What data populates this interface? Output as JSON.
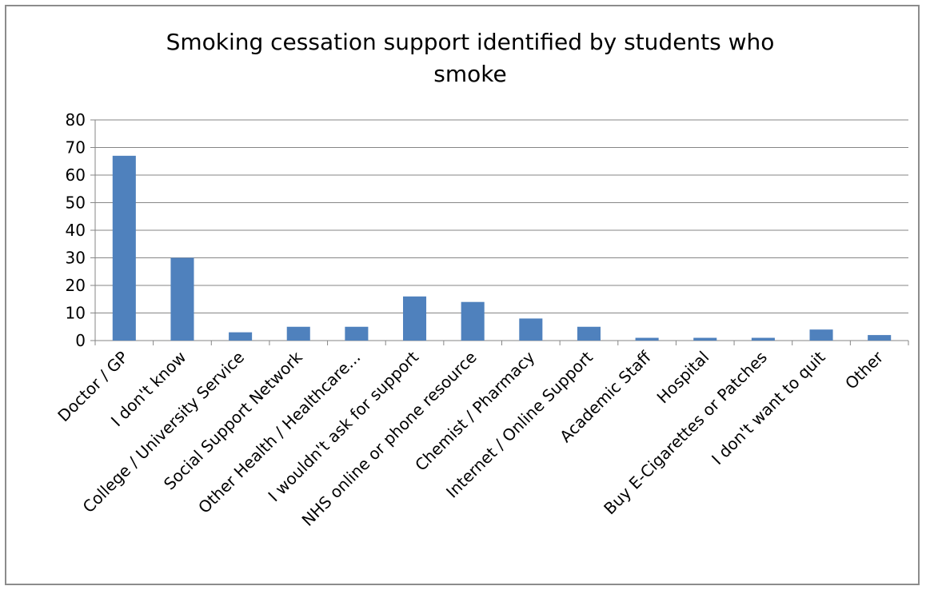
{
  "chart_data": {
    "type": "bar",
    "title_lines": [
      "Smoking cessation support identified by students who",
      "smoke"
    ],
    "xlabel": "",
    "ylabel": "",
    "ylim": [
      0,
      80
    ],
    "yticks": [
      0,
      10,
      20,
      30,
      40,
      50,
      60,
      70,
      80
    ],
    "grid": true,
    "legend": "none",
    "bar_color": "#4f81bd",
    "categories": [
      "Doctor / GP",
      "I don't know",
      "College / University Service",
      "Social Support Network",
      "Other Health / Healthcare...",
      "I wouldn't ask for support",
      "NHS online or phone resource",
      "Chemist / Pharmacy",
      "Internet / Online Support",
      "Academic Staff",
      "Hospital",
      "Buy E-Cigarettes or Patches",
      "I don't want to quit",
      "Other"
    ],
    "values": [
      67,
      30,
      3,
      5,
      5,
      16,
      14,
      8,
      5,
      1,
      1,
      1,
      4,
      2
    ]
  }
}
